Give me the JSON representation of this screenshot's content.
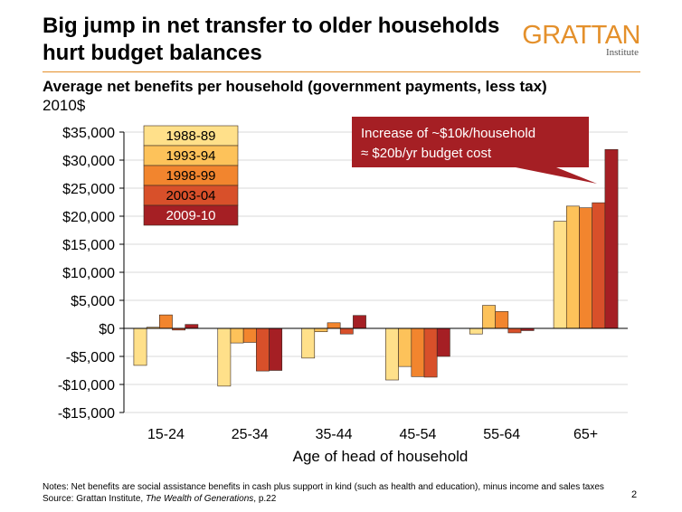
{
  "header": {
    "title": "Big jump in net transfer to older households hurt budget balances",
    "logo_main": "GRATTAN",
    "logo_sub": "Institute"
  },
  "colors": {
    "accent": "#e4902b",
    "series": [
      "#ffe08a",
      "#fdc25a",
      "#f2852e",
      "#d8502a",
      "#a51f24"
    ],
    "callout_bg": "#a51f24"
  },
  "chart_data": {
    "type": "bar",
    "title": "Average net benefits per household (government payments, less tax)",
    "subtitle": "2010$",
    "xlabel": "Age of head of household",
    "ylabel": "",
    "ylim": [
      -15000,
      35000
    ],
    "yticks": [
      35000,
      30000,
      25000,
      20000,
      15000,
      10000,
      5000,
      0,
      -5000,
      -10000,
      -15000
    ],
    "ytick_labels": [
      "$35,000",
      "$30,000",
      "$25,000",
      "$20,000",
      "$15,000",
      "$10,000",
      "$5,000",
      "$0",
      "-$5,000",
      "-$10,000",
      "-$15,000"
    ],
    "grid": true,
    "legend_position": "top-left",
    "categories": [
      "15-24",
      "25-34",
      "35-44",
      "45-54",
      "55-64",
      "65+"
    ],
    "series": [
      {
        "name": "1988-89",
        "values": [
          -6600,
          -10300,
          -5300,
          -9200,
          -1000,
          19100
        ]
      },
      {
        "name": "1993-94",
        "values": [
          200,
          -2600,
          -600,
          -6800,
          4100,
          21800
        ]
      },
      {
        "name": "1998-99",
        "values": [
          2400,
          -2500,
          1000,
          -8600,
          3000,
          21500
        ]
      },
      {
        "name": "2003-04",
        "values": [
          -300,
          -7600,
          -1000,
          -8700,
          -800,
          22400
        ]
      },
      {
        "name": "2009-10",
        "values": [
          700,
          -7500,
          2300,
          -5000,
          -400,
          31900
        ]
      }
    ],
    "annotation": {
      "line1": "Increase of ~$10k/household",
      "line2": "≈ $20b/yr budget cost"
    }
  },
  "footer": {
    "notes": "Notes: Net benefits are social assistance benefits in cash plus support in kind (such as health and education), minus income and sales taxes",
    "source_prefix": "Source: Grattan Institute, ",
    "source_title": "The Wealth of Generations",
    "source_suffix": ", p.22",
    "page_number": "2"
  }
}
